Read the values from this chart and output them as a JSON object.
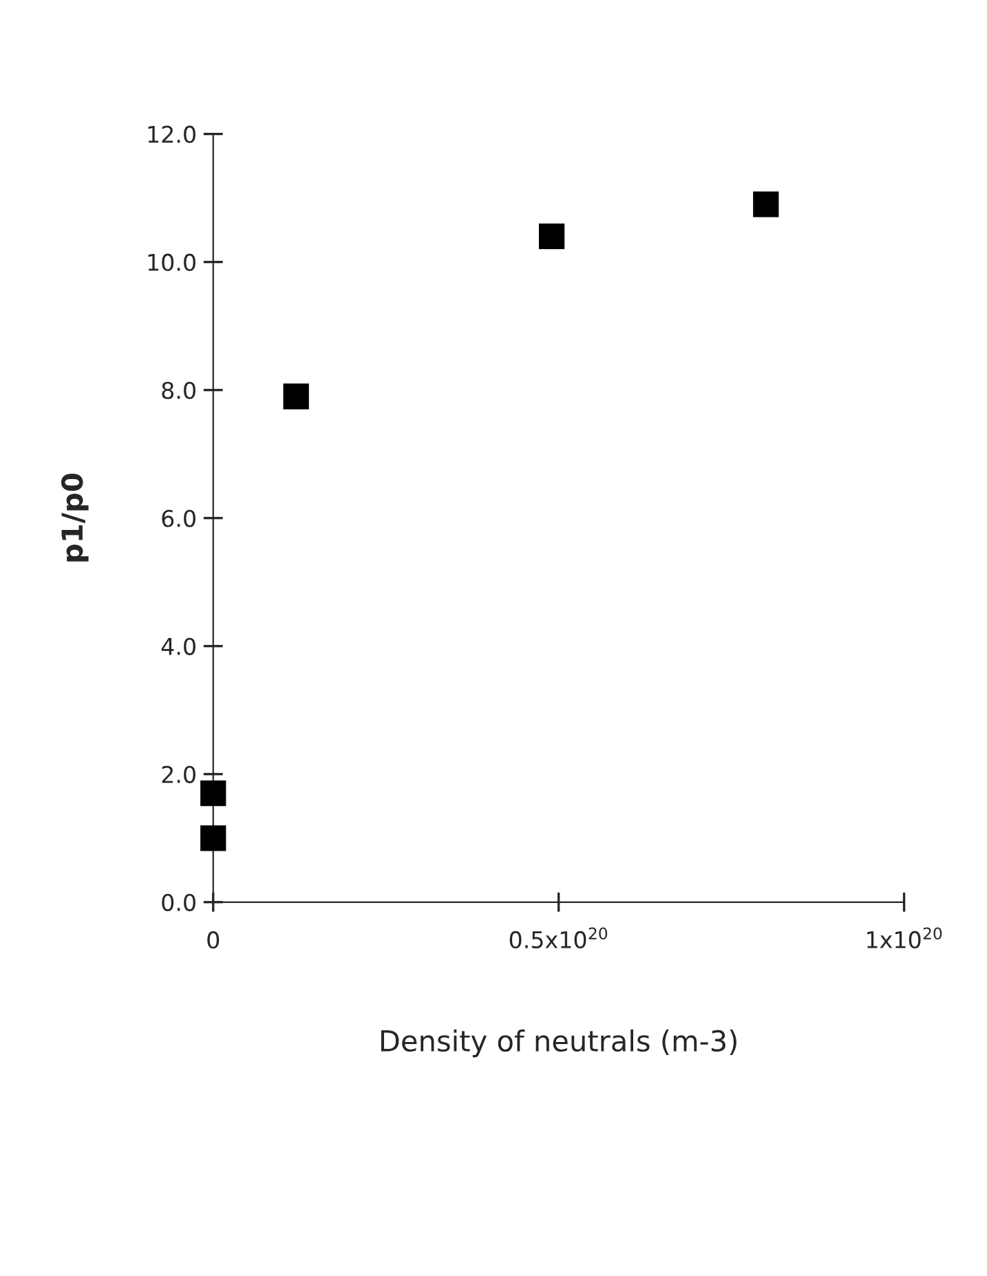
{
  "chart_data": {
    "type": "scatter",
    "xlabel": "Density of neutrals (m-3)",
    "ylabel": "p1/p0",
    "x": [
      0,
      0,
      1.2e+19,
      4.9e+19,
      8e+19
    ],
    "series": [
      {
        "color": "#000000",
        "values": [
          1.0,
          1.7,
          7.9,
          10.4,
          10.9
        ]
      }
    ],
    "marker": "square",
    "grid": false,
    "legend": false,
    "xlim": [
      0,
      1e+20
    ],
    "ylim": [
      0,
      12
    ],
    "xticks": [
      0,
      {
        "value": 5e+19,
        "label": "0.5x10$^{20}$"
      },
      {
        "value": 1e+20,
        "label": "1x10$^{20}$"
      }
    ],
    "yticks": [
      {
        "value": 0,
        "label": "0.0"
      },
      {
        "value": 2,
        "label": "2.0"
      },
      {
        "value": 4,
        "label": "4.0"
      },
      {
        "value": 6,
        "label": "6.0"
      },
      {
        "value": 8,
        "label": "8.0"
      },
      {
        "value": 10,
        "label": "10.0"
      },
      {
        "value": 12,
        "label": "12.0"
      }
    ]
  }
}
